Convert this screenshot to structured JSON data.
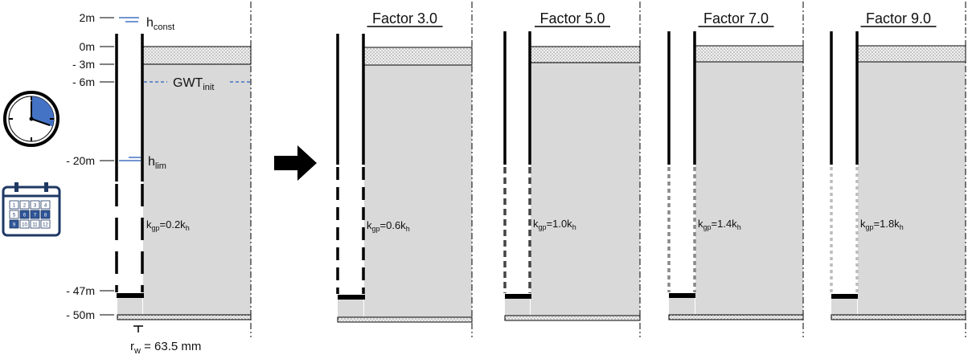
{
  "depth_labels": [
    "2m",
    "0m",
    "- 3m",
    "- 6m",
    "- 20m",
    "- 47m",
    "- 50m"
  ],
  "annotations": {
    "h_const": {
      "main": "h",
      "sub": "const"
    },
    "gwt_init": {
      "main": "GWT",
      "sub": "init"
    },
    "h_lim": {
      "main": "h",
      "sub": "lim"
    },
    "radius": {
      "main": "r",
      "sub": "w",
      "rest": " = 63.5 mm"
    }
  },
  "panels": [
    {
      "title": "",
      "k_ratio": "0.2",
      "screen_color": "#000000"
    },
    {
      "title": "Factor 3.0",
      "k_ratio": "0.6",
      "screen_color": "#000000"
    },
    {
      "title": "Factor 5.0",
      "k_ratio": "1.0",
      "screen_color": "#444444"
    },
    {
      "title": "Factor 7.0",
      "k_ratio": "1.4",
      "screen_color": "#888888"
    },
    {
      "title": "Factor 9.0",
      "k_ratio": "1.8",
      "screen_color": "#bbbbbb"
    }
  ],
  "colors": {
    "aquifer_fill": "#d9d9d9",
    "annotation_line": "#4472c4",
    "clock_sector": "#4472c4",
    "calendar_highlight": "#2f5597"
  },
  "icons": [
    "clock-icon",
    "calendar-icon",
    "right-arrow-icon"
  ],
  "calendar_days": [
    "1",
    "2",
    "3",
    "4",
    "5",
    "6",
    "7",
    "8",
    "9",
    "10",
    "11",
    "12"
  ],
  "calendar_highlighted": [
    "6",
    "7",
    "8",
    "9"
  ]
}
